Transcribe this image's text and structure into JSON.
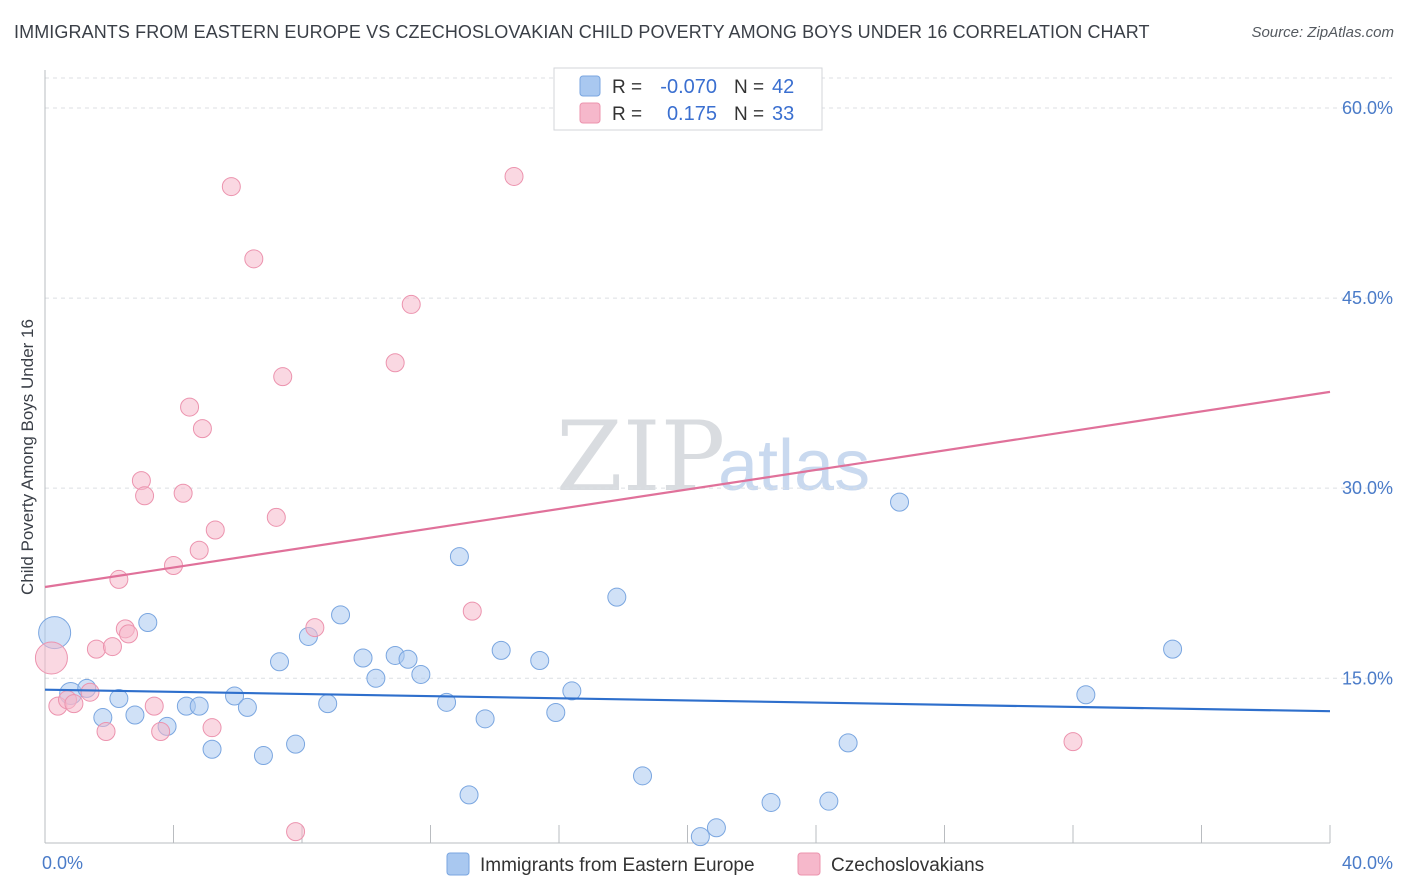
{
  "title": "IMMIGRANTS FROM EASTERN EUROPE VS CZECHOSLOVAKIAN CHILD POVERTY AMONG BOYS UNDER 16 CORRELATION CHART",
  "source": "Source: ZipAtlas.com",
  "watermark": {
    "zip": "ZIP",
    "atlas": "atlas"
  },
  "legend": {
    "rows": [
      {
        "r_label": "R =",
        "r_value": "-0.070",
        "n_label": "N =",
        "n_value": "42",
        "color": "#a9c8f0"
      },
      {
        "r_label": "R =",
        "r_value": "0.175",
        "n_label": "N =",
        "n_value": "33",
        "color": "#f6b8cb"
      }
    ]
  },
  "bottom_legend": [
    {
      "label": "Immigrants from Eastern Europe",
      "color": "#a9c8f0"
    },
    {
      "label": "Czechoslovakians",
      "color": "#f6b8cb"
    }
  ],
  "chart_data": {
    "type": "scatter",
    "ylabel": "Child Poverty Among Boys Under 16",
    "xlim": [
      0,
      40
    ],
    "ylim": [
      2,
      63
    ],
    "x_tick_labels": [
      {
        "value": 0,
        "label": "0.0%"
      },
      {
        "value": 40,
        "label": "40.0%"
      }
    ],
    "y_tick_labels": [
      {
        "value": 15,
        "label": "15.0%"
      },
      {
        "value": 30,
        "label": "30.0%"
      },
      {
        "value": 45,
        "label": "45.0%"
      },
      {
        "value": 60,
        "label": "60.0%"
      }
    ],
    "y_gridlines": [
      15,
      30,
      45,
      60
    ],
    "series": [
      {
        "name": "Immigrants from Eastern Europe",
        "color": "#a9c8f0",
        "stroke": "#7aa6e0",
        "trend_color": "#2e6fcc",
        "trend": {
          "x0": 0,
          "y0": 14.1,
          "x1": 40,
          "y1": 12.4
        },
        "points": [
          [
            0.3,
            18.6,
            16
          ],
          [
            0.8,
            13.8,
            11
          ],
          [
            1.3,
            14.2,
            9
          ],
          [
            1.8,
            11.9,
            9
          ],
          [
            2.3,
            13.4,
            9
          ],
          [
            2.8,
            12.1,
            9
          ],
          [
            3.2,
            19.4,
            9
          ],
          [
            3.8,
            11.2,
            9
          ],
          [
            4.4,
            12.8,
            9
          ],
          [
            4.8,
            12.8,
            9
          ],
          [
            5.2,
            9.4,
            9
          ],
          [
            5.9,
            13.6,
            9
          ],
          [
            6.3,
            12.7,
            9
          ],
          [
            6.8,
            8.9,
            9
          ],
          [
            7.3,
            16.3,
            9
          ],
          [
            7.8,
            9.8,
            9
          ],
          [
            8.2,
            18.3,
            9
          ],
          [
            8.8,
            13.0,
            9
          ],
          [
            9.2,
            20.0,
            9
          ],
          [
            9.9,
            16.6,
            9
          ],
          [
            10.3,
            15.0,
            9
          ],
          [
            10.9,
            16.8,
            9
          ],
          [
            11.3,
            16.5,
            9
          ],
          [
            11.7,
            15.3,
            9
          ],
          [
            12.5,
            13.1,
            9
          ],
          [
            12.9,
            24.6,
            9
          ],
          [
            13.2,
            5.8,
            9
          ],
          [
            13.7,
            11.8,
            9
          ],
          [
            14.2,
            17.2,
            9
          ],
          [
            15.4,
            16.4,
            9
          ],
          [
            15.9,
            12.3,
            9
          ],
          [
            16.4,
            14.0,
            9
          ],
          [
            17.8,
            21.4,
            9
          ],
          [
            18.6,
            7.3,
            9
          ],
          [
            20.4,
            2.5,
            9
          ],
          [
            20.9,
            3.2,
            9
          ],
          [
            22.6,
            5.2,
            9
          ],
          [
            24.4,
            5.3,
            9
          ],
          [
            25.0,
            9.9,
            9
          ],
          [
            26.6,
            28.9,
            9
          ],
          [
            32.4,
            13.7,
            9
          ],
          [
            35.1,
            17.3,
            9
          ]
        ]
      },
      {
        "name": "Czechoslovakians",
        "color": "#f6b8cb",
        "stroke": "#ec93ae",
        "trend_color": "#e0719a",
        "trend": {
          "x0": 0,
          "y0": 22.2,
          "x1": 40,
          "y1": 37.6
        },
        "points": [
          [
            0.2,
            16.6,
            16
          ],
          [
            0.4,
            12.8,
            9
          ],
          [
            0.7,
            13.3,
            9
          ],
          [
            0.9,
            13.0,
            9
          ],
          [
            1.4,
            13.9,
            9
          ],
          [
            1.6,
            17.3,
            9
          ],
          [
            1.9,
            10.8,
            9
          ],
          [
            2.1,
            17.5,
            9
          ],
          [
            2.3,
            22.8,
            9
          ],
          [
            2.5,
            18.9,
            9
          ],
          [
            2.6,
            18.5,
            9
          ],
          [
            3.0,
            30.6,
            9
          ],
          [
            3.1,
            29.4,
            9
          ],
          [
            3.4,
            12.8,
            9
          ],
          [
            3.6,
            10.8,
            9
          ],
          [
            4.0,
            23.9,
            9
          ],
          [
            4.3,
            29.6,
            9
          ],
          [
            4.5,
            36.4,
            9
          ],
          [
            4.8,
            25.1,
            9
          ],
          [
            4.9,
            34.7,
            9
          ],
          [
            5.2,
            11.1,
            9
          ],
          [
            5.3,
            26.7,
            9
          ],
          [
            5.8,
            53.8,
            9
          ],
          [
            6.5,
            48.1,
            9
          ],
          [
            7.2,
            27.7,
            9
          ],
          [
            7.4,
            38.8,
            9
          ],
          [
            7.8,
            2.9,
            9
          ],
          [
            8.4,
            19.0,
            9
          ],
          [
            10.9,
            39.9,
            9
          ],
          [
            11.4,
            44.5,
            9
          ],
          [
            13.3,
            20.3,
            9
          ],
          [
            14.6,
            54.6,
            9
          ],
          [
            32.0,
            10.0,
            9
          ]
        ]
      }
    ]
  }
}
